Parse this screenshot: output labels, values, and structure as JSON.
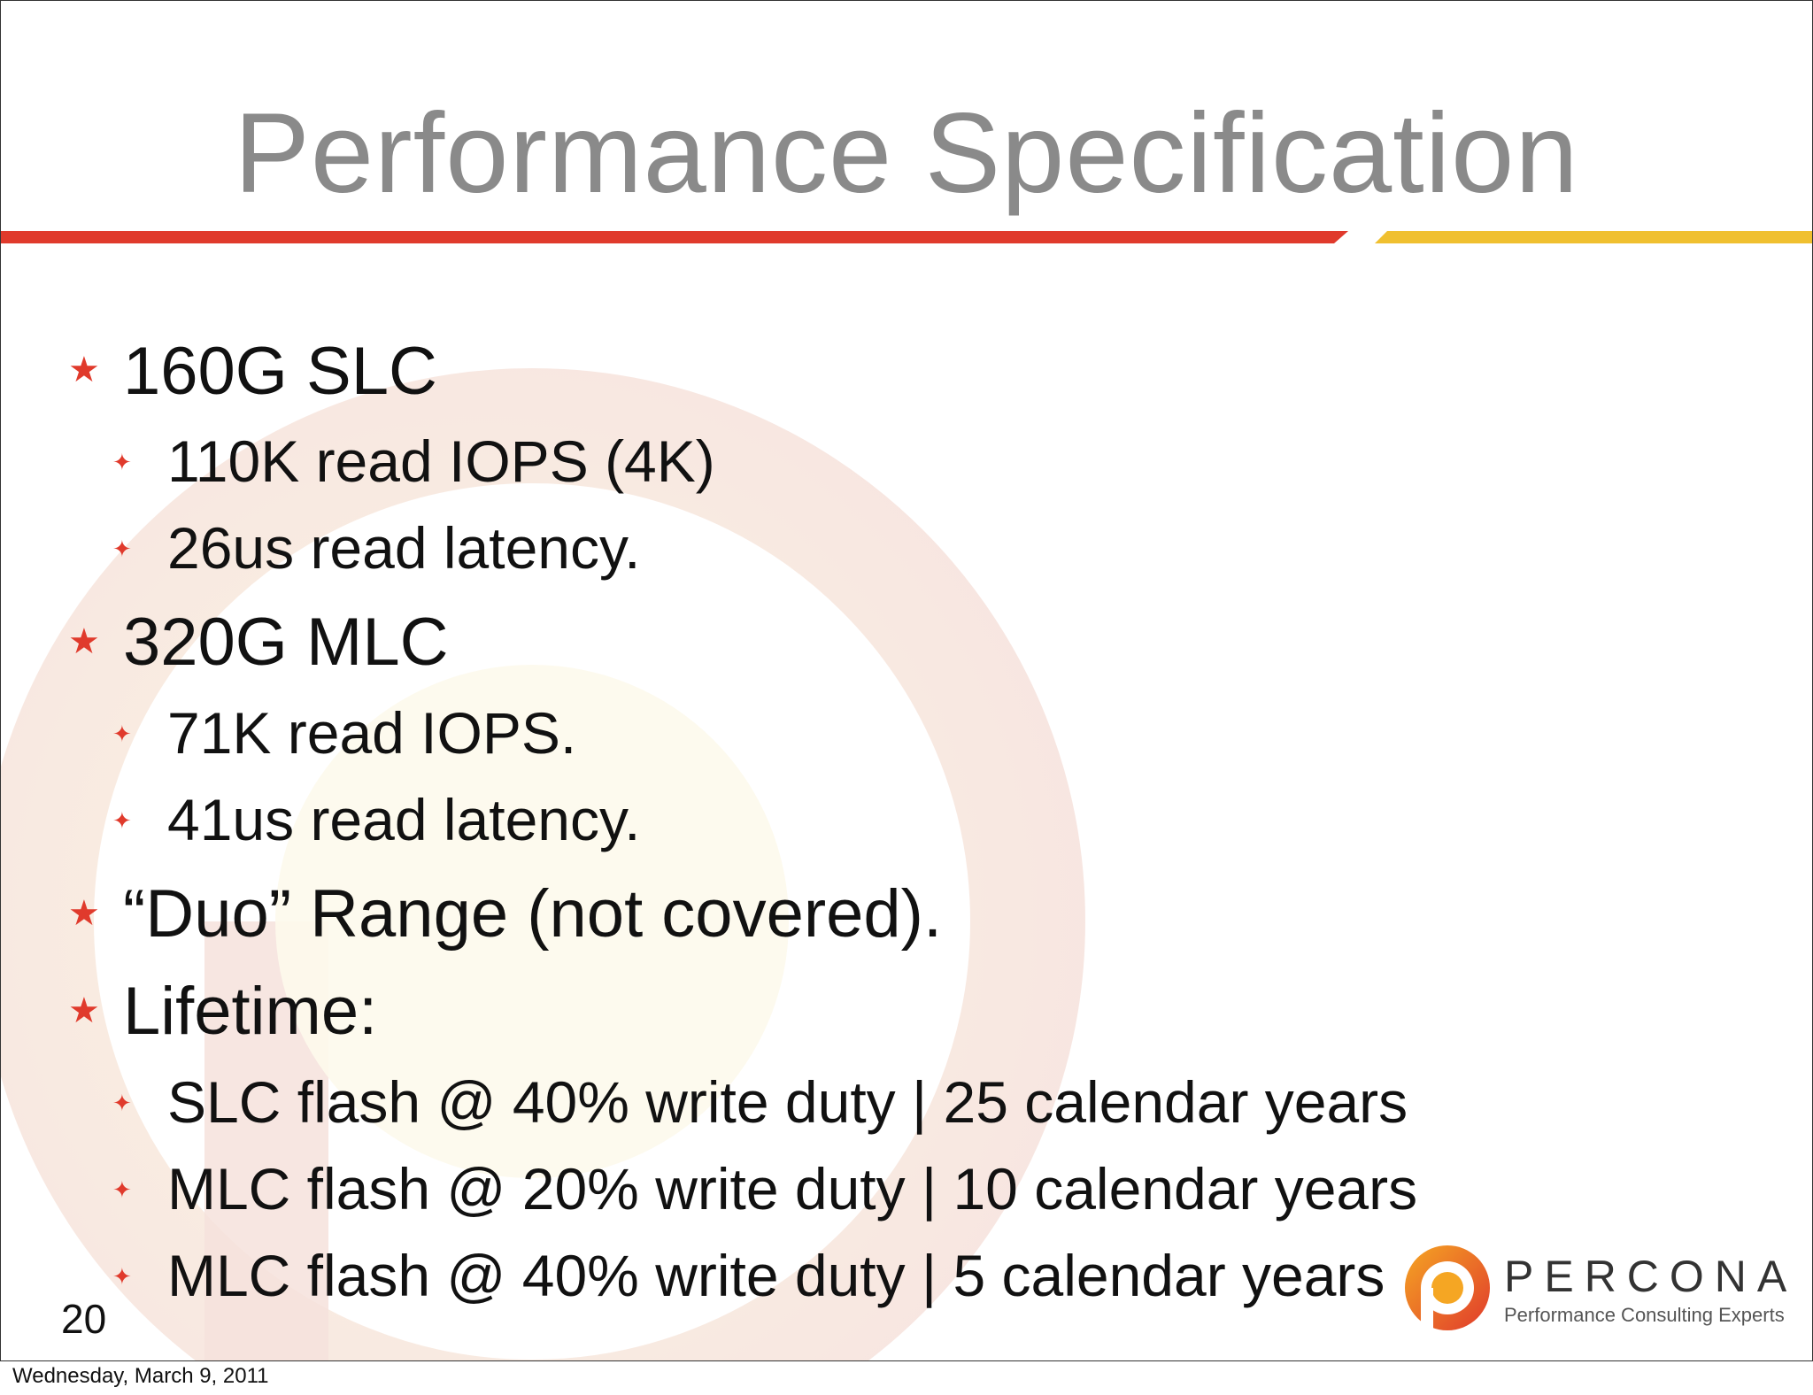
{
  "slide": {
    "title": "Performance Specification",
    "page_number": "20",
    "bullets": [
      {
        "level": 1,
        "text": "160G SLC"
      },
      {
        "level": 2,
        "text": "110K read IOPS (4K)"
      },
      {
        "level": 2,
        "text": "26us read latency."
      },
      {
        "level": 1,
        "text": "320G MLC"
      },
      {
        "level": 2,
        "text": "71K read IOPS."
      },
      {
        "level": 2,
        "text": "41us read latency."
      },
      {
        "level": 1,
        "text": "“Duo” Range (not covered)."
      },
      {
        "level": 1,
        "text": "Lifetime:"
      },
      {
        "level": 2,
        "text": "SLC flash @ 40% write duty | 25 calendar years"
      },
      {
        "level": 2,
        "text": "MLC flash @ 20% write duty | 10 calendar years"
      },
      {
        "level": 2,
        "text": "MLC flash @ 40% write duty | 5 calendar years"
      }
    ],
    "markers": {
      "level1": "★",
      "level2": "✦"
    }
  },
  "logo": {
    "name": "PERCONA",
    "tagline": "Performance Consulting Experts"
  },
  "footer": {
    "date": "Wednesday, March 9, 2011"
  },
  "colors": {
    "title": "#8a8a8a",
    "rule_red": "#e03a2c",
    "rule_yellow": "#f0c030",
    "marker": "#e03a2c"
  }
}
